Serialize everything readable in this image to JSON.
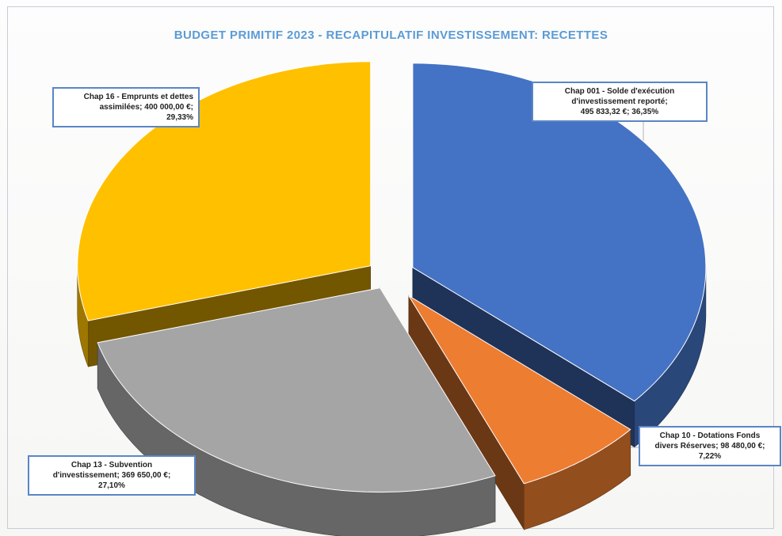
{
  "chart_data": {
    "type": "pie",
    "title": "BUDGET PRIMITIF 2023 - RECAPITULATIF INVESTISSEMENT: RECETTES",
    "three_d": true,
    "exploded": true,
    "legend": "none",
    "slices": [
      {
        "label": "Chap 001 - Solde d'exécution d'investissement reporté",
        "value": 495833.32,
        "value_text": "495 833,32 €",
        "percent": 36.35,
        "percent_text": "36,35%",
        "color": "#4472c4"
      },
      {
        "label": "Chap 10 - Dotations Fonds divers Réserves",
        "value": 98480.0,
        "value_text": "98 480,00 €",
        "percent": 7.22,
        "percent_text": "7,22%",
        "color": "#ed7d31"
      },
      {
        "label": "Chap 13 - Subvention d'investissement",
        "value": 369650.0,
        "value_text": "369 650,00 €",
        "percent": 27.1,
        "percent_text": "27,10%",
        "color": "#a5a5a5"
      },
      {
        "label": "Chap 16 - Emprunts et dettes assimilées",
        "value": 400000.0,
        "value_text": "400 000,00 €",
        "percent": 29.33,
        "percent_text": "29,33%",
        "color": "#ffc000"
      }
    ],
    "callouts": [
      {
        "line1": "Chap 001 - Solde d'exécution",
        "line2": "d'investissement reporté;",
        "line3": "495 833,32 €; 36,35%"
      },
      {
        "line1": "Chap 10 - Dotations Fonds",
        "line2": "divers Réserves; 98 480,00 €;",
        "line3": "7,22%"
      },
      {
        "line1": "Chap 13 - Subvention",
        "line2": "d'investissement; 369 650,00 €;",
        "line3": "27,10%"
      },
      {
        "line1": "Chap 16 - Emprunts et dettes",
        "line2": "assimilées; 400 000,00 €;",
        "line3": "29,33%"
      }
    ]
  }
}
